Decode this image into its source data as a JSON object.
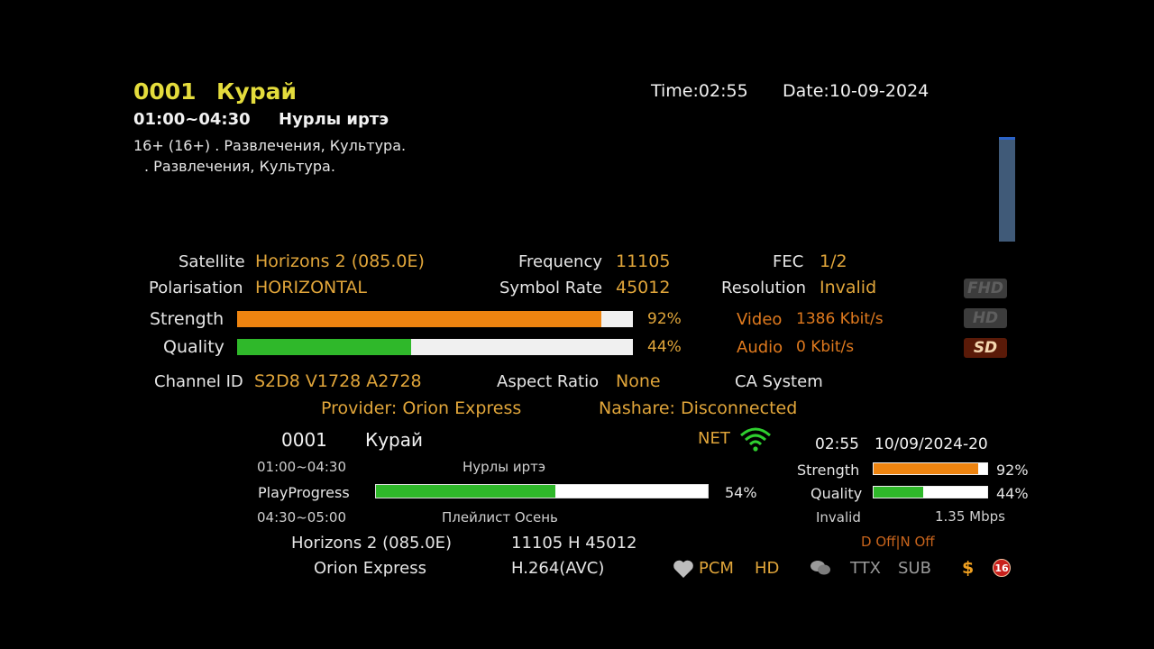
{
  "header": {
    "channel_number": "0001",
    "channel_name": "Курай",
    "time_label": "Time:",
    "time": "02:55",
    "date_label": "Date:",
    "date": "10-09-2024",
    "program_time": "01:00~04:30",
    "program_title": "Нурлы иртэ",
    "desc_line1": "16+ (16+) . Развлечения, Культура.",
    "desc_line2": ". Развлечения, Культура."
  },
  "signal_info": {
    "satellite_label": "Satellite",
    "satellite": "Horizons 2 (085.0E)",
    "frequency_label": "Frequency",
    "frequency": "11105",
    "fec_label": "FEC",
    "fec": "1/2",
    "polarisation_label": "Polarisation",
    "polarisation": "HORIZONTAL",
    "symbol_rate_label": "Symbol Rate",
    "symbol_rate": "45012",
    "resolution_label": "Resolution",
    "resolution": "Invalid",
    "strength_label": "Strength",
    "strength_pct": "92%",
    "strength_value": 0.92,
    "quality_label": "Quality",
    "quality_pct": "44%",
    "quality_value": 0.44,
    "video_label": "Video",
    "video_rate": "1386 Kbit/s",
    "audio_label": "Audio",
    "audio_rate": "0 Kbit/s",
    "badges": {
      "fhd": "FHD",
      "hd": "HD",
      "sd": "SD"
    },
    "channel_id_label": "Channel ID",
    "channel_id": "S2D8 V1728 A2728",
    "aspect_ratio_label": "Aspect Ratio",
    "aspect_ratio": "None",
    "ca_system_label": "CA System",
    "provider": "Provider: Orion Express",
    "nashare": "Nashare: Disconnected"
  },
  "infobar": {
    "channel_number": "0001",
    "channel_name": "Курай",
    "net_label": "NET",
    "time": "02:55",
    "date": "10/09/2024-20",
    "current_time": "01:00~04:30",
    "current_title": "Нурлы иртэ",
    "play_progress_label": "PlayProgress",
    "play_progress_pct": "54%",
    "play_progress_value": 0.54,
    "next_time": "04:30~05:00",
    "next_title": "Плейлист Осень",
    "strength_label": "Strength",
    "strength_pct": "92%",
    "strength_value": 0.92,
    "quality_label": "Quality",
    "quality_pct": "44%",
    "quality_value": 0.44,
    "resolution": "Invalid",
    "bitrate": "1.35 Mbps",
    "satellite": "Horizons 2 (085.0E)",
    "transponder": "11105 H 45012",
    "dolby": "D Off|N Off",
    "provider": "Orion Express",
    "codec": "H.264(AVC)",
    "pcm": "PCM",
    "hd": "HD",
    "ttx": "TTX",
    "sub": "SUB",
    "currency": "$",
    "age": "16"
  },
  "colors": {
    "yellow": "#e4dc3c",
    "gold": "#e0a53a",
    "orange_bar": "#ee8410",
    "green_bar": "#2fb82a",
    "video_audio": "#e07a1e"
  }
}
